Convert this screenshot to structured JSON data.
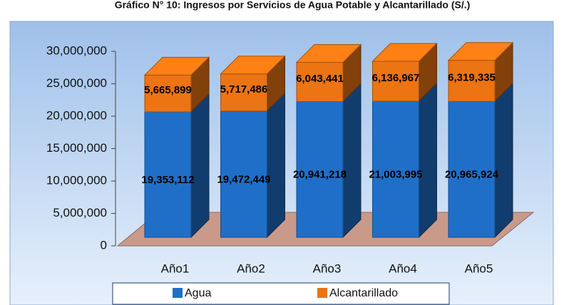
{
  "chart_data": {
    "type": "bar3d_stacked",
    "title": "Gráfico N° 10: Ingresos por Servicios de Agua Potable y Alcantarillado (S/.)",
    "categories": [
      "Año1",
      "Año2",
      "Año3",
      "Año4",
      "Año5"
    ],
    "series": [
      {
        "name": "Agua",
        "color": "#1f6fc8",
        "values": [
          19353112,
          19472449,
          20941218,
          21003995,
          20965924
        ],
        "value_labels": [
          "19,353,112",
          "19,472,449",
          "20,941,218",
          "21,003,995",
          "20,965,924"
        ]
      },
      {
        "name": "Alcantarillado",
        "color": "#ec7412",
        "values": [
          5665899,
          5717486,
          6043441,
          6136967,
          6319335
        ],
        "value_labels": [
          "5,665,899",
          "5,717,486",
          "6,043,441",
          "6,136,967",
          "6,319,335"
        ]
      }
    ],
    "ylim": [
      0,
      30000000
    ],
    "yticks": [
      0,
      {
        "value": 5000000,
        "label": "5,000,000"
      },
      {
        "value": 10000000,
        "label": "10,000,000"
      },
      {
        "value": 15000000,
        "label": "15,000,000"
      },
      {
        "value": 20000000,
        "label": "20,000,000"
      },
      {
        "value": 25000000,
        "label": "25,000,000"
      },
      {
        "value": 30000000,
        "label": "30,000,000"
      }
    ],
    "legend": "bottom"
  }
}
